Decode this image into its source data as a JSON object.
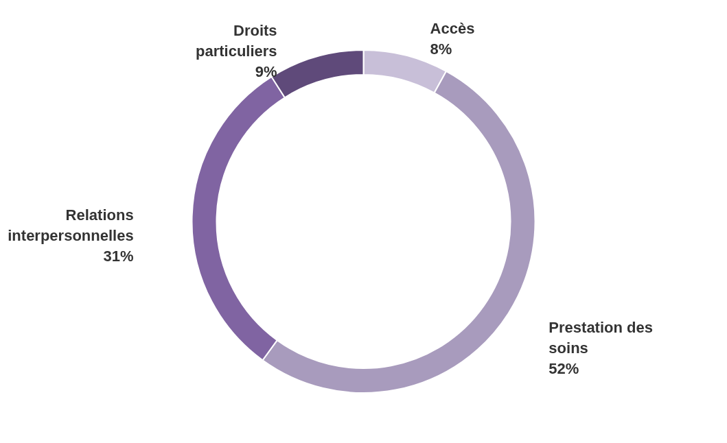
{
  "chart_data": {
    "type": "donut",
    "categories": [
      "Accès",
      "Prestation des soins",
      "Relations interpersonnelles",
      "Droits particuliers"
    ],
    "values": [
      8,
      52,
      31,
      9
    ],
    "value_labels": [
      "8%",
      "52%",
      "31%",
      "9%"
    ],
    "colors": [
      "#c8bfd8",
      "#a89bbd",
      "#8064a2",
      "#5f4a7a"
    ]
  }
}
